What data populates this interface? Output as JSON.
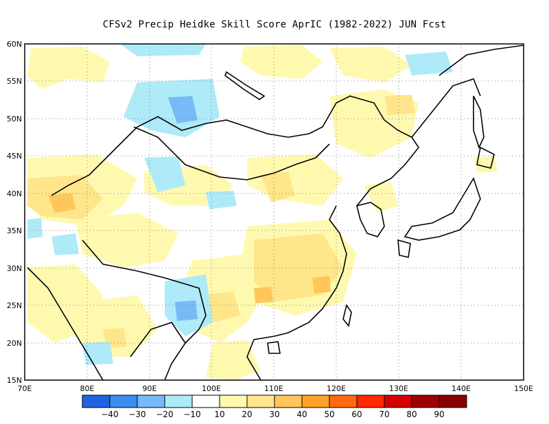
{
  "title": "CFSv2 Precip Heidke Skill Score AprIC (1982-2022) JUN Fcst",
  "map": {
    "lon_range": [
      70,
      150
    ],
    "lat_range": [
      15,
      60
    ],
    "lon_ticks": [
      "70E",
      "80E",
      "90E",
      "100E",
      "110E",
      "120E",
      "130E",
      "140E",
      "150E"
    ],
    "lat_ticks": [
      "15N",
      "20N",
      "25N",
      "30N",
      "35N",
      "40N",
      "45N",
      "50N",
      "55N",
      "60N"
    ],
    "grid": "dotted"
  },
  "colorbar": {
    "labels": [
      "-40",
      "-30",
      "-20",
      "-10",
      "10",
      "20",
      "30",
      "40",
      "50",
      "60",
      "70",
      "80",
      "90"
    ],
    "colors": [
      "#1e63e0",
      "#3c8cf0",
      "#78b9f8",
      "#aeeaf8",
      "#ffffff",
      "#fff9b0",
      "#ffe68a",
      "#ffc65a",
      "#ffa02a",
      "#ff6a10",
      "#ff2a00",
      "#d40000",
      "#a00000",
      "#8a0000"
    ]
  },
  "regions": [
    {
      "name": "mongolia-negative",
      "level": "-20",
      "color": "#78b9f8"
    },
    {
      "name": "yangtze-positive",
      "level": "30",
      "color": "#ffc65a"
    },
    {
      "name": "tarim-positive",
      "level": "30",
      "color": "#ffc65a"
    }
  ]
}
